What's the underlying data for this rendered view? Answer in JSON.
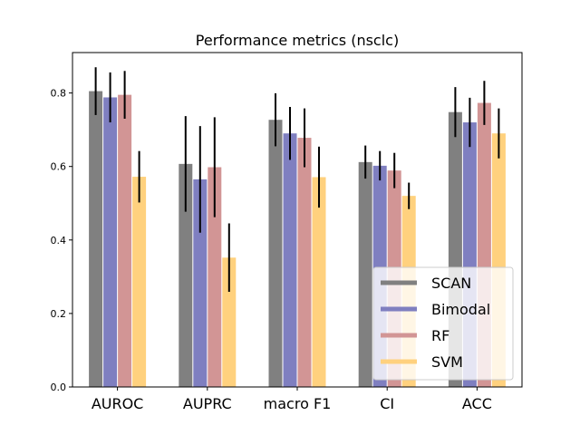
{
  "chart_data": {
    "type": "bar",
    "title": "Performance metrics (nsclc)",
    "xlabel": "",
    "ylabel": "",
    "categories": [
      "AUROC",
      "AUPRC",
      "macro F1",
      "CI",
      "ACC"
    ],
    "ylim": [
      0,
      0.91
    ],
    "yticks": [
      0.0,
      0.2,
      0.4,
      0.6,
      0.8
    ],
    "ytick_labels": [
      "0.0",
      "0.2",
      "0.4",
      "0.6",
      "0.8"
    ],
    "grid": false,
    "legend_position": "bottom-right",
    "series": [
      {
        "name": "SCAN",
        "color": "#808080",
        "values": [
          0.805,
          0.607,
          0.727,
          0.612,
          0.748
        ],
        "errors": [
          0.065,
          0.13,
          0.072,
          0.045,
          0.068
        ]
      },
      {
        "name": "Bimodal",
        "color": "#7f7fc0",
        "values": [
          0.788,
          0.565,
          0.69,
          0.602,
          0.72
        ],
        "errors": [
          0.068,
          0.145,
          0.072,
          0.04,
          0.067
        ]
      },
      {
        "name": "RF",
        "color": "#d29595",
        "values": [
          0.795,
          0.598,
          0.678,
          0.589,
          0.773
        ],
        "errors": [
          0.065,
          0.136,
          0.08,
          0.048,
          0.06
        ]
      },
      {
        "name": "SVM",
        "color": "#ffd17e",
        "values": [
          0.572,
          0.352,
          0.571,
          0.52,
          0.69
        ],
        "errors": [
          0.07,
          0.093,
          0.083,
          0.036,
          0.068
        ]
      }
    ]
  }
}
